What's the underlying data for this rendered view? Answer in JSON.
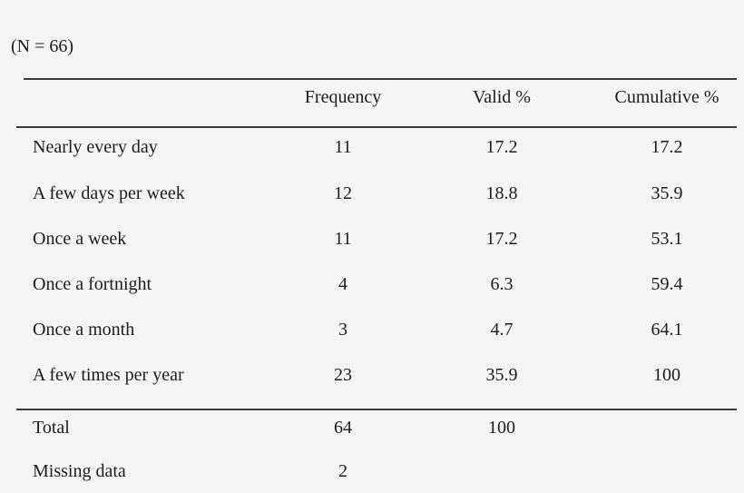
{
  "page": {
    "note": "(N = 66)",
    "background_color": "#f5f5f5",
    "text_color": "#1c1c1c",
    "rule_color": "#3a3a3a"
  },
  "table": {
    "columns": [
      "Frequency",
      "Valid %",
      "Cumulative %"
    ],
    "rows": [
      {
        "label": "Nearly every day",
        "frequency": "11",
        "valid_pct": "17.2",
        "cumulative_pct": "17.2"
      },
      {
        "label": "A few days per week",
        "frequency": "12",
        "valid_pct": "18.8",
        "cumulative_pct": "35.9"
      },
      {
        "label": "Once a week",
        "frequency": "11",
        "valid_pct": "17.2",
        "cumulative_pct": "53.1"
      },
      {
        "label": "Once a fortnight",
        "frequency": "4",
        "valid_pct": "6.3",
        "cumulative_pct": "59.4"
      },
      {
        "label": "Once a month",
        "frequency": "3",
        "valid_pct": "4.7",
        "cumulative_pct": "64.1"
      },
      {
        "label": "A few times per year",
        "frequency": "23",
        "valid_pct": "35.9",
        "cumulative_pct": "100"
      }
    ],
    "total_row": {
      "label": "Total",
      "frequency": "64",
      "valid_pct": "100",
      "cumulative_pct": ""
    },
    "missing_row": {
      "label": "Missing data",
      "frequency": "2",
      "valid_pct": "",
      "cumulative_pct": ""
    }
  },
  "chart_data": {
    "type": "table",
    "title": "(N = 66)",
    "categories": [
      "Nearly every day",
      "A few days per week",
      "Once a week",
      "Once a fortnight",
      "Once a month",
      "A few times per year",
      "Total",
      "Missing data"
    ],
    "series": [
      {
        "name": "Frequency",
        "values": [
          11,
          12,
          11,
          4,
          3,
          23,
          64,
          2
        ]
      },
      {
        "name": "Valid %",
        "values": [
          17.2,
          18.8,
          17.2,
          6.3,
          4.7,
          35.9,
          100,
          null
        ]
      },
      {
        "name": "Cumulative %",
        "values": [
          17.2,
          35.9,
          53.1,
          59.4,
          64.1,
          100,
          null,
          null
        ]
      }
    ]
  }
}
